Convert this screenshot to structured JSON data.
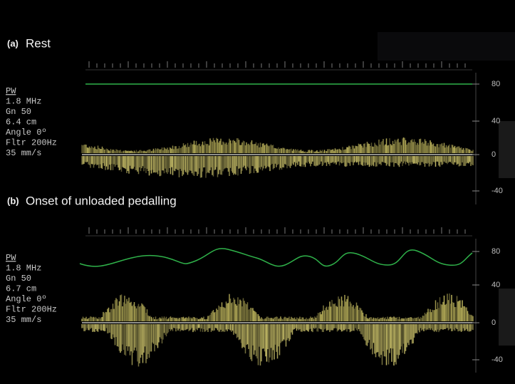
{
  "panels": [
    {
      "label": "(a)",
      "title": "Rest",
      "settings": [
        "PW",
        "1.8 MHz",
        "Gn 50",
        "6.4 cm",
        "Angle 0º",
        "Fltr 200Hz",
        "35 mm/s"
      ],
      "scale": [
        80,
        40,
        0,
        -40
      ]
    },
    {
      "label": "(b)",
      "title": "Onset of unloaded pedalling",
      "settings": [
        "PW",
        "1.8 MHz",
        "Gn 50",
        "6.7 cm",
        "Angle 0º",
        "Fltr 200Hz",
        "35 mm/s"
      ],
      "scale": [
        80,
        40,
        0,
        -40
      ]
    }
  ]
}
